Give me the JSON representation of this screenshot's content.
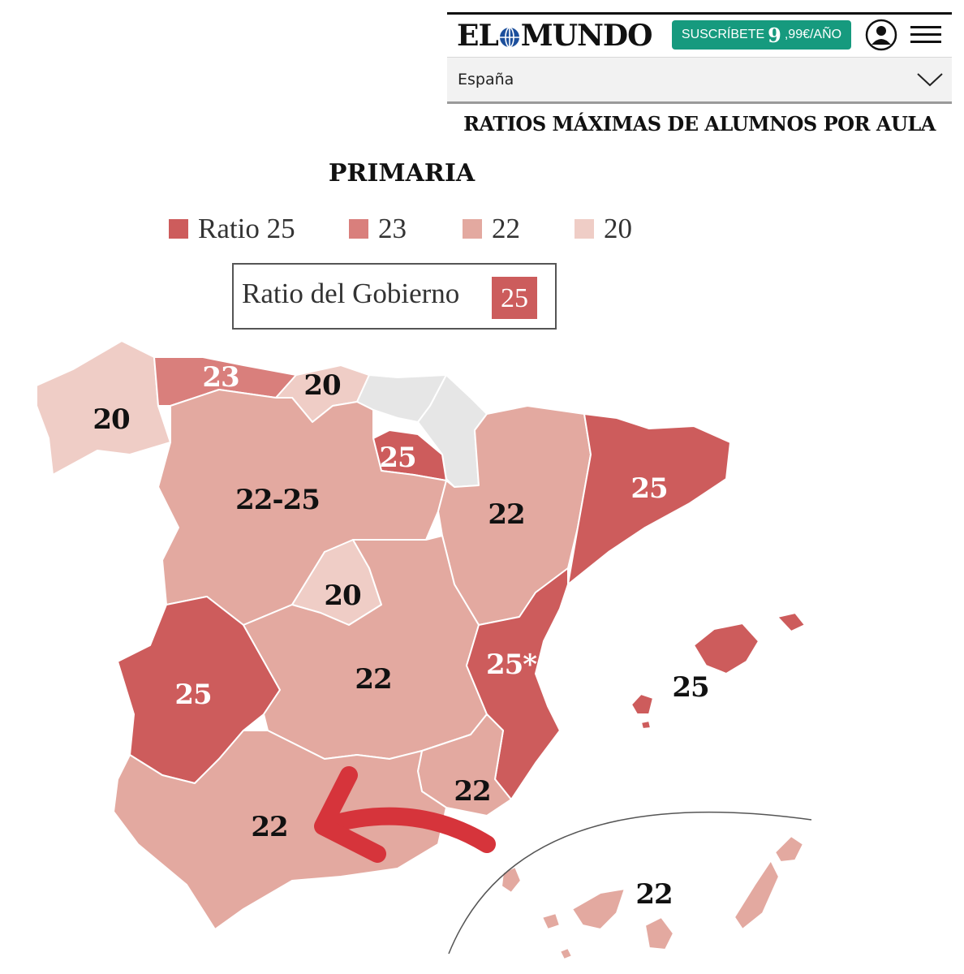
{
  "header": {
    "logo_left": "EL",
    "logo_right": "MUNDO",
    "subscribe": {
      "prefix": "SUSCRÍBETE",
      "price_big": "9",
      "price_rest": ",99€/AÑO"
    },
    "section": "España"
  },
  "title": "RATIOS MÁXIMAS DE ALUMNOS POR AULA",
  "subtitle": "PRIMARIA",
  "legend": [
    {
      "label": "Ratio 25",
      "color": "#cd5c5c"
    },
    {
      "label": "23",
      "color": "#d97f7c"
    },
    {
      "label": "22",
      "color": "#e3a9a0"
    },
    {
      "label": "20",
      "color": "#efcdc6"
    }
  ],
  "government": {
    "label": "Ratio del Gobierno",
    "value": "25"
  },
  "colors": {
    "r25": "#cd5c5c",
    "r23": "#d97f7c",
    "r22": "#e3a9a0",
    "r20": "#efcdc6",
    "nodata": "#e6e6e6",
    "arrow": "#d6343b",
    "subscribe": "#169a7e"
  },
  "regions": [
    {
      "name": "Galicia",
      "ratio": "20"
    },
    {
      "name": "Asturias",
      "ratio": "23"
    },
    {
      "name": "Cantabria",
      "ratio": "20"
    },
    {
      "name": "País Vasco",
      "ratio": ""
    },
    {
      "name": "Navarra",
      "ratio": ""
    },
    {
      "name": "La Rioja",
      "ratio": "25"
    },
    {
      "name": "Castilla y León",
      "ratio": "22-25"
    },
    {
      "name": "Aragón",
      "ratio": "22"
    },
    {
      "name": "Cataluña",
      "ratio": "25"
    },
    {
      "name": "Madrid",
      "ratio": "20"
    },
    {
      "name": "Extremadura",
      "ratio": "25"
    },
    {
      "name": "Castilla-La Mancha",
      "ratio": "22"
    },
    {
      "name": "Comunidad Valenciana",
      "ratio": "25*"
    },
    {
      "name": "Islas Baleares",
      "ratio": "25"
    },
    {
      "name": "Murcia",
      "ratio": "22"
    },
    {
      "name": "Andalucía",
      "ratio": "22"
    },
    {
      "name": "Canarias",
      "ratio": "22"
    }
  ]
}
